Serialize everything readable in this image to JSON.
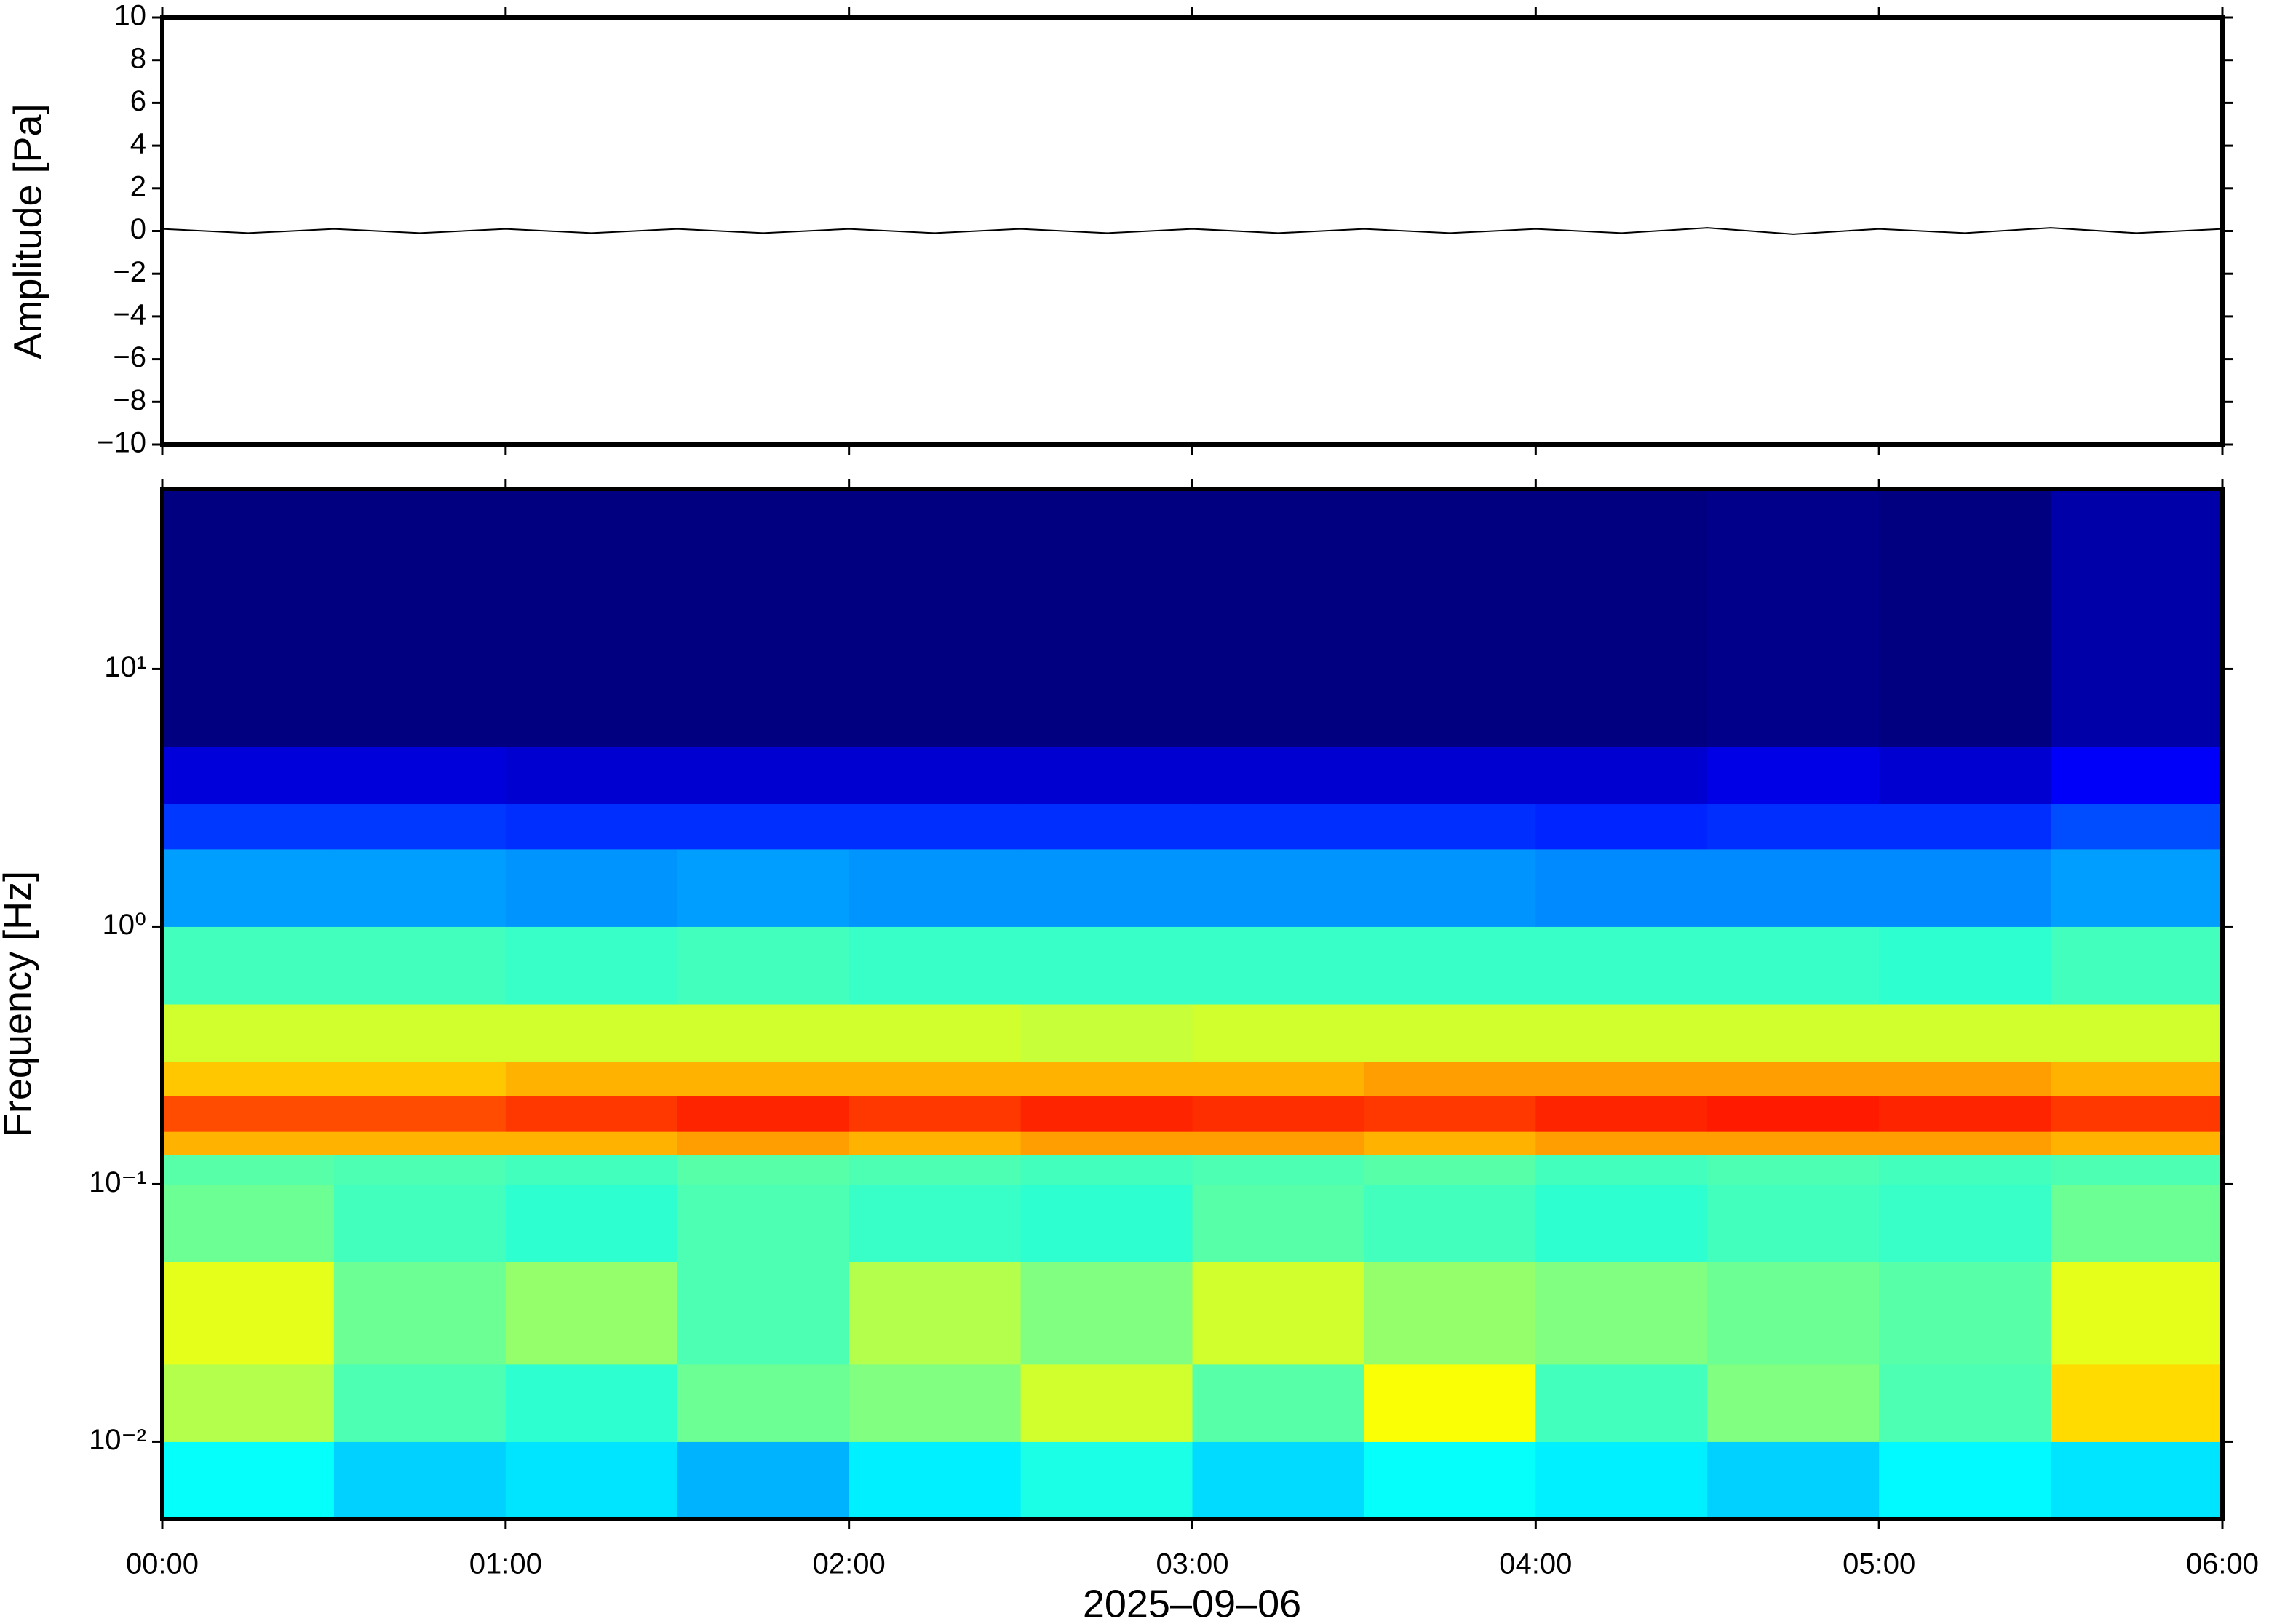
{
  "chart_data": [
    {
      "type": "line",
      "ylabel": "Amplitude [Pa]",
      "x": [
        0,
        0.25,
        0.5,
        0.75,
        1,
        1.25,
        1.5,
        1.75,
        2,
        2.25,
        2.5,
        2.75,
        3,
        3.25,
        3.5,
        3.75,
        4,
        4.25,
        4.5,
        4.75,
        5,
        5.25,
        5.5,
        5.75,
        6
      ],
      "series": [
        {
          "color": "#000000",
          "values": [
            0.1,
            -0.1,
            0.1,
            -0.1,
            0.1,
            -0.1,
            0.1,
            -0.1,
            0.1,
            -0.1,
            0.1,
            -0.1,
            0.1,
            -0.1,
            0.1,
            -0.1,
            0.1,
            -0.1,
            0.15,
            -0.15,
            0.1,
            -0.1,
            0.15,
            -0.1,
            0.1
          ]
        }
      ],
      "xlim": [
        0,
        6
      ],
      "xticks": [
        0,
        1,
        2,
        3,
        4,
        5,
        6
      ],
      "ylim": [
        -10,
        10
      ],
      "yticks": [
        {
          "value": -10,
          "label": "−10"
        },
        {
          "value": -8,
          "label": "−8"
        },
        {
          "value": -6,
          "label": "−6"
        },
        {
          "value": -4,
          "label": "−4"
        },
        {
          "value": -2,
          "label": "−2"
        },
        0,
        2,
        4,
        6,
        8,
        10
      ]
    },
    {
      "type": "heatmap",
      "ylabel": "Frequency [Hz]",
      "xlabel": "2025–09–06",
      "colormap": "jet",
      "log_y": true,
      "xlim": [
        0,
        6
      ],
      "xticks": [
        {
          "value": 0,
          "label": "00:00"
        },
        {
          "value": 1,
          "label": "01:00"
        },
        {
          "value": 2,
          "label": "02:00"
        },
        {
          "value": 3,
          "label": "03:00"
        },
        {
          "value": 4,
          "label": "04:00"
        },
        {
          "value": 5,
          "label": "05:00"
        },
        {
          "value": 6,
          "label": "06:00"
        }
      ],
      "ylim": [
        0.005,
        50
      ],
      "yticks": [
        {
          "value": 0.01,
          "label": "10⁻²"
        },
        {
          "value": 0.1,
          "label": "10⁻¹"
        },
        {
          "value": 1,
          "label": "10⁰"
        },
        {
          "value": 10,
          "label": "10¹"
        }
      ],
      "time_edges": [
        0,
        0.5,
        1,
        1.5,
        2,
        2.5,
        3,
        3.5,
        4,
        4.5,
        5,
        5.5,
        6
      ],
      "freq_edges": [
        0.005,
        0.01,
        0.02,
        0.05,
        0.1,
        0.13,
        0.16,
        0.22,
        0.3,
        0.5,
        1,
        2,
        3,
        5,
        50
      ],
      "zlim": [
        0,
        1
      ],
      "z": [
        [
          0.38,
          0.33,
          0.35,
          0.3,
          0.36,
          0.4,
          0.34,
          0.38,
          0.36,
          0.33,
          0.37,
          0.35
        ],
        [
          0.55,
          0.45,
          0.42,
          0.48,
          0.5,
          0.58,
          0.46,
          0.62,
          0.44,
          0.5,
          0.45,
          0.66
        ],
        [
          0.6,
          0.48,
          0.52,
          0.45,
          0.55,
          0.5,
          0.58,
          0.52,
          0.5,
          0.48,
          0.46,
          0.6
        ],
        [
          0.48,
          0.44,
          0.42,
          0.45,
          0.43,
          0.42,
          0.46,
          0.44,
          0.42,
          0.44,
          0.43,
          0.48
        ],
        [
          0.46,
          0.45,
          0.44,
          0.46,
          0.45,
          0.44,
          0.45,
          0.46,
          0.44,
          0.45,
          0.44,
          0.45
        ],
        [
          0.7,
          0.7,
          0.7,
          0.72,
          0.7,
          0.72,
          0.72,
          0.7,
          0.72,
          0.72,
          0.72,
          0.7
        ],
        [
          0.8,
          0.8,
          0.82,
          0.84,
          0.82,
          0.84,
          0.83,
          0.82,
          0.84,
          0.85,
          0.84,
          0.82
        ],
        [
          0.68,
          0.68,
          0.7,
          0.7,
          0.7,
          0.7,
          0.7,
          0.72,
          0.72,
          0.72,
          0.72,
          0.7
        ],
        [
          0.58,
          0.58,
          0.58,
          0.58,
          0.58,
          0.57,
          0.58,
          0.58,
          0.58,
          0.58,
          0.58,
          0.58
        ],
        [
          0.44,
          0.44,
          0.43,
          0.44,
          0.43,
          0.43,
          0.43,
          0.43,
          0.43,
          0.43,
          0.42,
          0.44
        ],
        [
          0.28,
          0.28,
          0.27,
          0.28,
          0.27,
          0.27,
          0.27,
          0.27,
          0.26,
          0.26,
          0.26,
          0.28
        ],
        [
          0.18,
          0.18,
          0.17,
          0.17,
          0.17,
          0.17,
          0.17,
          0.17,
          0.16,
          0.17,
          0.17,
          0.2
        ],
        [
          0.09,
          0.09,
          0.08,
          0.08,
          0.08,
          0.08,
          0.08,
          0.08,
          0.08,
          0.1,
          0.08,
          0.12
        ],
        [
          0.0,
          0.0,
          0.0,
          0.0,
          0.0,
          0.0,
          0.0,
          0.0,
          0.0,
          0.01,
          0.0,
          0.04
        ]
      ]
    }
  ]
}
